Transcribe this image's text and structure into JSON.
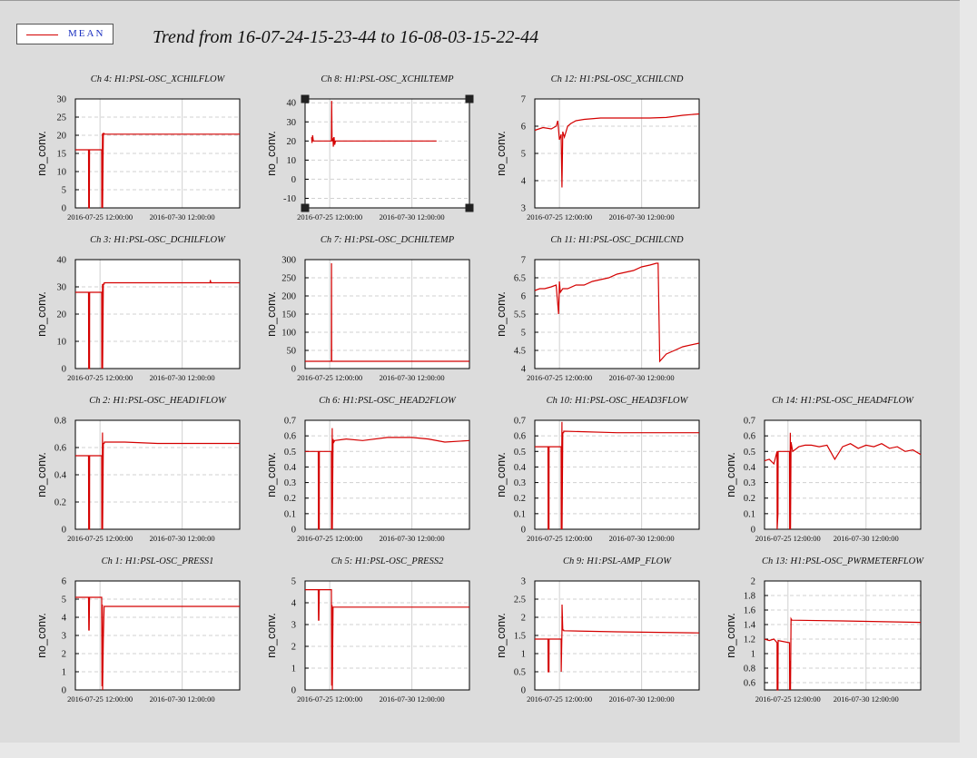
{
  "legend": {
    "label": "MEAN",
    "color": "#d40000"
  },
  "title": "Trend from 16-07-24-15-23-44 to 16-08-03-15-22-44",
  "ylabel": "no_conv.",
  "x_tick_labels": [
    "2016-07-25 12:00:00",
    "2016-07-30 12:00:00"
  ],
  "chart_data": [
    {
      "type": "line",
      "title": "Ch 4: H1:PSL-OSC_XCHILFLOW",
      "ylim": [
        0,
        30
      ],
      "yticks": [
        0,
        5,
        10,
        15,
        20,
        25,
        30
      ],
      "x": [
        0,
        0.8,
        0.81,
        0.85,
        0.86,
        1.6,
        1.61,
        1.65,
        1.66,
        1.7,
        1.75,
        1.76,
        10
      ],
      "values": [
        16,
        16,
        0,
        0,
        16,
        16,
        0,
        20.5,
        0,
        20.5,
        20.5,
        20.3,
        20.3
      ]
    },
    {
      "type": "line",
      "title": "Ch 8: H1:PSL-OSC_XCHILTEMP",
      "ylim": [
        -15,
        42
      ],
      "yticks": [
        -10,
        0,
        10,
        20,
        30,
        40
      ],
      "selected": true,
      "x": [
        0.4,
        0.42,
        0.46,
        0.5,
        0.55,
        1.6,
        1.62,
        1.64,
        1.7,
        1.72,
        1.76,
        1.8,
        1.85,
        8
      ],
      "values": [
        22,
        19,
        23,
        20,
        20,
        20,
        41,
        20,
        21,
        17,
        22,
        18,
        20,
        20
      ]
    },
    {
      "type": "line",
      "title": "Ch 12: H1:PSL-OSC_XCHILCND",
      "ylim": [
        3,
        7
      ],
      "yticks": [
        3,
        4,
        5,
        6,
        7
      ],
      "x": [
        0,
        0.5,
        1,
        1.3,
        1.4,
        1.5,
        1.6,
        1.65,
        1.7,
        1.8,
        2.0,
        2.2,
        2.5,
        3.0,
        4.0,
        5.5,
        7.0,
        8.0,
        9.0,
        10.0
      ],
      "values": [
        5.85,
        5.95,
        5.9,
        6.0,
        6.2,
        5.5,
        5.7,
        3.75,
        5.8,
        5.6,
        6.0,
        6.1,
        6.2,
        6.25,
        6.3,
        6.3,
        6.3,
        6.32,
        6.4,
        6.45
      ]
    },
    {
      "type": "line",
      "title": "Ch 3: H1:PSL-OSC_DCHILFLOW",
      "ylim": [
        0,
        40
      ],
      "yticks": [
        0,
        10,
        20,
        30,
        40
      ],
      "x": [
        0,
        0.8,
        0.81,
        0.86,
        0.87,
        1.6,
        1.61,
        1.65,
        1.66,
        1.7,
        1.75,
        1.76,
        8.2,
        8.21,
        8.25,
        10
      ],
      "values": [
        28,
        28,
        0,
        0,
        28,
        28,
        0,
        31,
        0,
        31,
        31,
        31.5,
        31.5,
        32.5,
        31.5,
        31.5
      ]
    },
    {
      "type": "line",
      "title": "Ch 7: H1:PSL-OSC_DCHILTEMP",
      "ylim": [
        0,
        300
      ],
      "yticks": [
        0,
        50,
        100,
        150,
        200,
        250,
        300
      ],
      "x": [
        0,
        1.6,
        1.61,
        1.62,
        1.7,
        10
      ],
      "values": [
        20,
        20,
        290,
        20,
        20,
        20
      ]
    },
    {
      "type": "line",
      "title": "Ch 11: H1:PSL-OSC_DCHILCND",
      "ylim": [
        4,
        7
      ],
      "yticks": [
        4,
        4.5,
        5,
        5.5,
        6,
        6.5,
        7
      ],
      "x": [
        0,
        0.3,
        0.6,
        1.0,
        1.3,
        1.45,
        1.5,
        1.55,
        1.7,
        2.0,
        2.5,
        3.0,
        3.5,
        4.0,
        4.5,
        5.0,
        5.5,
        6.0,
        6.5,
        7.0,
        7.4,
        7.5,
        7.6,
        8.0,
        8.5,
        9.0,
        10.0
      ],
      "values": [
        6.15,
        6.2,
        6.2,
        6.25,
        6.3,
        5.5,
        6.4,
        6.1,
        6.2,
        6.2,
        6.3,
        6.3,
        6.4,
        6.45,
        6.5,
        6.6,
        6.65,
        6.7,
        6.8,
        6.85,
        6.9,
        6.9,
        4.2,
        4.4,
        4.5,
        4.6,
        4.7
      ]
    },
    {
      "type": "line",
      "title": "Ch 2: H1:PSL-OSC_HEAD1FLOW",
      "ylim": [
        0,
        0.8
      ],
      "yticks": [
        0,
        0.2,
        0.4,
        0.6,
        0.8
      ],
      "x": [
        0,
        0.8,
        0.81,
        0.86,
        0.87,
        1.6,
        1.61,
        1.65,
        1.66,
        1.7,
        1.75,
        1.76,
        3,
        5,
        10
      ],
      "values": [
        0.54,
        0.54,
        0,
        0,
        0.54,
        0.54,
        0,
        0.71,
        0,
        0.63,
        0.63,
        0.64,
        0.64,
        0.63,
        0.63
      ]
    },
    {
      "type": "line",
      "title": "Ch 6: H1:PSL-OSC_HEAD2FLOW",
      "ylim": [
        0,
        0.7
      ],
      "yticks": [
        0,
        0.1,
        0.2,
        0.3,
        0.4,
        0.5,
        0.6,
        0.7
      ],
      "x": [
        0,
        0.8,
        0.81,
        0.86,
        0.87,
        1.6,
        1.61,
        1.65,
        1.66,
        1.7,
        1.75,
        1.8,
        2.5,
        3.5,
        5,
        6.5,
        7.5,
        8.5,
        10
      ],
      "values": [
        0.5,
        0.5,
        0,
        0,
        0.5,
        0.5,
        0,
        0.65,
        0,
        0.58,
        0.56,
        0.57,
        0.58,
        0.57,
        0.59,
        0.59,
        0.58,
        0.56,
        0.57
      ]
    },
    {
      "type": "line",
      "title": "Ch 10: H1:PSL-OSC_HEAD3FLOW",
      "ylim": [
        0,
        0.7
      ],
      "yticks": [
        0,
        0.1,
        0.2,
        0.3,
        0.4,
        0.5,
        0.6,
        0.7
      ],
      "x": [
        0,
        0.8,
        0.81,
        0.86,
        0.87,
        1.6,
        1.61,
        1.65,
        1.66,
        1.7,
        1.75,
        1.76,
        5,
        10
      ],
      "values": [
        0.53,
        0.53,
        0,
        0,
        0.53,
        0.53,
        0,
        0.69,
        0,
        0.62,
        0.62,
        0.63,
        0.62,
        0.62
      ]
    },
    {
      "type": "line",
      "title": "Ch 14: H1:PSL-OSC_HEAD4FLOW",
      "ylim": [
        0,
        0.7
      ],
      "yticks": [
        0,
        0.1,
        0.2,
        0.3,
        0.4,
        0.5,
        0.6,
        0.7
      ],
      "x": [
        0,
        0.3,
        0.6,
        0.8,
        0.81,
        0.86,
        0.87,
        1.6,
        1.61,
        1.65,
        1.66,
        1.7,
        1.8,
        2.2,
        2.6,
        3.0,
        3.5,
        4.0,
        4.5,
        5.0,
        5.5,
        6.0,
        6.5,
        7.0,
        7.5,
        8.0,
        8.5,
        9.0,
        9.5,
        10.0
      ],
      "values": [
        0.44,
        0.45,
        0.42,
        0.5,
        0,
        0.1,
        0.5,
        0.5,
        0,
        0.62,
        0,
        0.56,
        0.5,
        0.53,
        0.54,
        0.54,
        0.53,
        0.54,
        0.45,
        0.53,
        0.55,
        0.52,
        0.54,
        0.53,
        0.55,
        0.52,
        0.53,
        0.5,
        0.51,
        0.48
      ]
    },
    {
      "type": "line",
      "title": "Ch 1: H1:PSL-OSC_PRESS1",
      "ylim": [
        0,
        6
      ],
      "yticks": [
        0,
        1,
        2,
        3,
        4,
        5,
        6
      ],
      "x": [
        0,
        0.8,
        0.82,
        0.84,
        0.86,
        1.6,
        1.62,
        1.64,
        1.66,
        1.7,
        1.75,
        1.76,
        1.8,
        10
      ],
      "values": [
        5.1,
        5.1,
        3.3,
        3.3,
        5.1,
        5.1,
        0.2,
        4.7,
        0,
        2.8,
        4.6,
        4.6,
        4.6,
        4.6
      ]
    },
    {
      "type": "line",
      "title": "Ch 5: H1:PSL-OSC_PRESS2",
      "ylim": [
        0,
        5
      ],
      "yticks": [
        0,
        1,
        2,
        3,
        4,
        5
      ],
      "x": [
        0,
        0.8,
        0.82,
        0.84,
        0.86,
        1.6,
        1.62,
        1.64,
        1.66,
        1.7,
        1.75,
        1.76,
        1.8,
        10
      ],
      "values": [
        4.6,
        4.6,
        3.2,
        3.2,
        4.6,
        4.6,
        0.2,
        3.9,
        0,
        3.8,
        3.8,
        3.8,
        3.8,
        3.8
      ]
    },
    {
      "type": "line",
      "title": "Ch 9: H1:PSL-AMP_FLOW",
      "ylim": [
        0,
        3
      ],
      "yticks": [
        0,
        0.5,
        1,
        1.5,
        2,
        2.5,
        3
      ],
      "x": [
        0,
        0.8,
        0.81,
        0.86,
        0.87,
        1.6,
        1.61,
        1.65,
        1.66,
        1.7,
        1.75,
        1.76,
        5,
        10
      ],
      "values": [
        1.4,
        1.4,
        0.5,
        0.5,
        1.4,
        1.4,
        0.5,
        1.6,
        2.35,
        1.65,
        1.65,
        1.63,
        1.6,
        1.57
      ]
    },
    {
      "type": "line",
      "title": "Ch 13: H1:PSL-OSC_PWRMETERFLOW",
      "ylim": [
        0.5,
        2
      ],
      "yticks": [
        0.6,
        0.8,
        1,
        1.2,
        1.4,
        1.6,
        1.8,
        2
      ],
      "x": [
        0,
        0.3,
        0.6,
        0.8,
        0.81,
        0.86,
        0.87,
        1.6,
        1.61,
        1.65,
        1.66,
        1.7,
        1.75,
        1.76,
        5,
        10
      ],
      "values": [
        1.2,
        1.18,
        1.2,
        1.15,
        0.5,
        0.5,
        1.18,
        1.15,
        0.5,
        0.9,
        0.5,
        1.48,
        1.46,
        1.46,
        1.45,
        1.43
      ]
    }
  ]
}
